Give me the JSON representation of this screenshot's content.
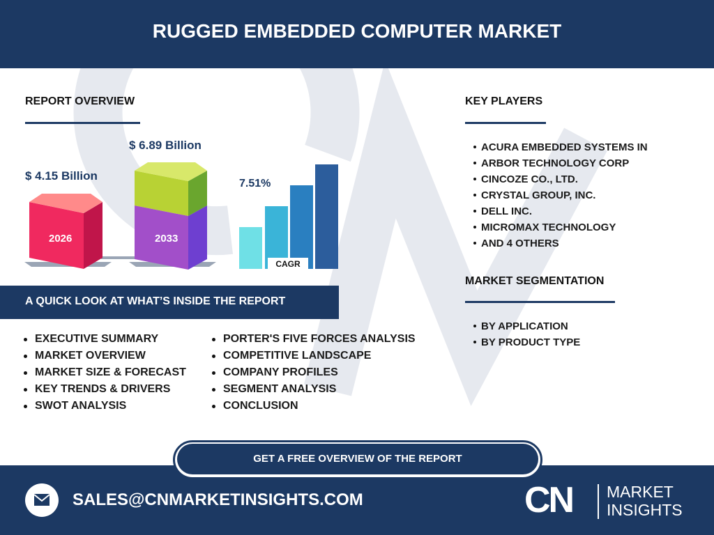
{
  "header": {
    "title": "RUGGED EMBEDDED COMPUTER MARKET"
  },
  "overview": {
    "title": "REPORT OVERVIEW",
    "value_2026": "$ 4.15 Billion",
    "year_2026": "2026",
    "value_2033": "$ 6.89 Billion",
    "year_2033": "2033",
    "cagr_value": "7.51%",
    "cagr_label": "CAGR"
  },
  "quick_look": {
    "title": "A QUICK LOOK AT WHAT’S INSIDE THE REPORT",
    "items": [
      "EXECUTIVE SUMMARY",
      "MARKET OVERVIEW",
      "MARKET SIZE & FORECAST",
      "KEY TRENDS & DRIVERS",
      "SWOT ANALYSIS",
      "PORTER'S FIVE FORCES ANALYSIS",
      "COMPETITIVE LANDSCAPE",
      "COMPANY PROFILES",
      "SEGMENT ANALYSIS",
      "CONCLUSION"
    ]
  },
  "key_players": {
    "title": "KEY PLAYERS",
    "items": [
      "ACURA EMBEDDED SYSTEMS IN",
      "ARBOR TECHNOLOGY CORP",
      "CINCOZE CO., LTD.",
      "CRYSTAL GROUP, INC.",
      "DELL INC.",
      "MICROMAX TECHNOLOGY",
      "AND 4 OTHERS"
    ]
  },
  "segmentation": {
    "title": "MARKET SEGMENTATION",
    "items": [
      "BY APPLICATION",
      "BY PRODUCT TYPE"
    ]
  },
  "cta": {
    "label": "GET A FREE OVERVIEW OF THE REPORT"
  },
  "footer": {
    "email": "SALES@CNMARKETINSIGHTS.COM",
    "logo_mark": "CN",
    "logo_text_1": "MARKET",
    "logo_text_2": "INSIGHTS"
  }
}
